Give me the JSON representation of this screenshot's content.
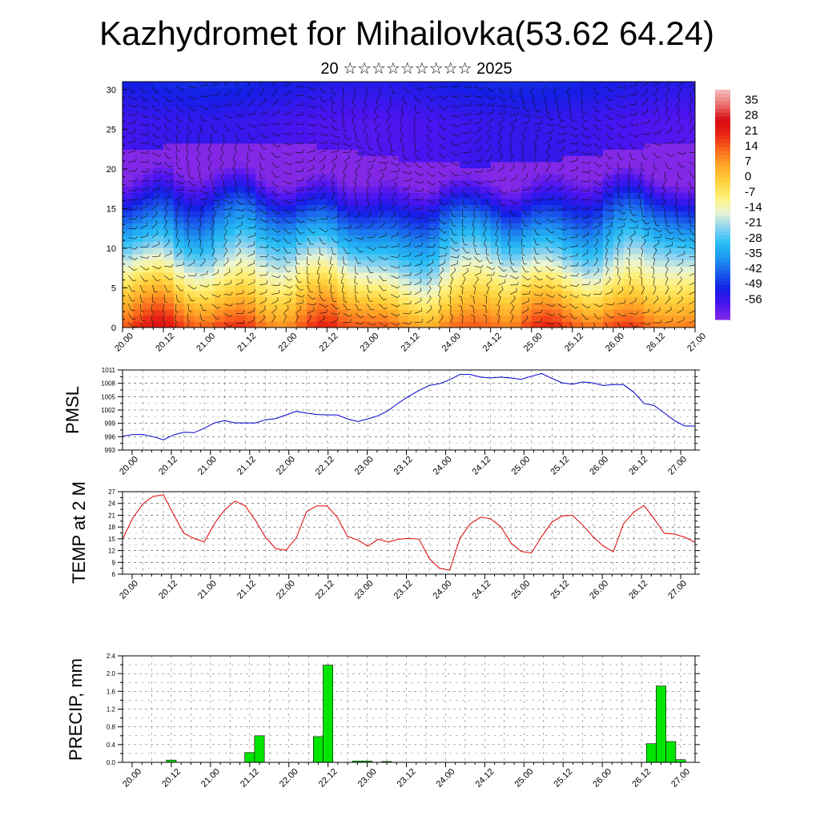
{
  "header": {
    "title": "Kazhydromet for Mihailovka(53.62 64.24)",
    "subtitle": "20 ☆☆☆☆☆☆☆☆☆ 2025"
  },
  "colors": {
    "pressure_line": "#0000cc",
    "temp_line": "#dd0000",
    "precip_bar": "#00e600"
  },
  "time_labels": [
    "20.00",
    "20.12",
    "21.00",
    "21.12",
    "22.00",
    "22.12",
    "23.00",
    "23.12",
    "24.00",
    "24.12",
    "25.00",
    "25.12",
    "26.00",
    "26.12",
    "27.00"
  ],
  "chart_data": [
    {
      "type": "heatmap",
      "ylim": [
        0,
        31
      ],
      "yticks": [
        "0",
        "5",
        "10",
        "15",
        "20",
        "25",
        "30"
      ],
      "xticks": [
        "20.00",
        "20.12",
        "21.00",
        "21.12",
        "22.00",
        "22.12",
        "23.00",
        "23.12",
        "24.00",
        "24.12",
        "25.00",
        "25.12",
        "26.00",
        "26.12",
        "27.00"
      ],
      "colorbar": {
        "labels": [
          "35",
          "28",
          "21",
          "14",
          "7",
          "0",
          "-7",
          "-14",
          "-21",
          "-28",
          "-35",
          "-42",
          "-49",
          "-56"
        ],
        "range": [
          -63,
          42
        ]
      },
      "overlay": "wind barbs",
      "surface_temp_by_hour": [
        {
          "t": 0,
          "v": 15
        },
        {
          "t": 6,
          "v": 22
        },
        {
          "t": 12,
          "v": 26
        },
        {
          "t": 18,
          "v": 16
        },
        {
          "t": 24,
          "v": 14
        },
        {
          "t": 30,
          "v": 21
        },
        {
          "t": 36,
          "v": 24
        },
        {
          "t": 42,
          "v": 15
        },
        {
          "t": 48,
          "v": 12
        },
        {
          "t": 54,
          "v": 20
        },
        {
          "t": 60,
          "v": 23
        },
        {
          "t": 66,
          "v": 15
        },
        {
          "t": 72,
          "v": 14
        },
        {
          "t": 78,
          "v": 15
        },
        {
          "t": 84,
          "v": 10
        },
        {
          "t": 90,
          "v": 7
        },
        {
          "t": 96,
          "v": 17
        },
        {
          "t": 102,
          "v": 20
        },
        {
          "t": 108,
          "v": 17
        },
        {
          "t": 114,
          "v": 11
        },
        {
          "t": 120,
          "v": 19
        },
        {
          "t": 126,
          "v": 21
        },
        {
          "t": 132,
          "v": 15
        },
        {
          "t": 138,
          "v": 12
        },
        {
          "t": 144,
          "v": 20
        },
        {
          "t": 150,
          "v": 23
        },
        {
          "t": 156,
          "v": 16
        },
        {
          "t": 162,
          "v": 14
        },
        {
          "t": 168,
          "v": 14
        }
      ]
    },
    {
      "type": "line",
      "ylabel": "PMSL",
      "ylim": [
        993,
        1011
      ],
      "yticks": [
        "993",
        "996",
        "999",
        "1002",
        "1005",
        "1008",
        "1011"
      ],
      "xticks": [
        "20.00",
        "20.12",
        "21.00",
        "21.12",
        "22.00",
        "22.12",
        "23.00",
        "23.12",
        "24.00",
        "24.12",
        "25.00",
        "25.12",
        "26.00",
        "26.12",
        "27.00"
      ],
      "series": [
        {
          "values_by_hour": [
            {
              "t": 0,
              "v": 996.1
            },
            {
              "t": 3,
              "v": 996.5
            },
            {
              "t": 6,
              "v": 996.5
            },
            {
              "t": 9,
              "v": 996.0
            },
            {
              "t": 12,
              "v": 995.3
            },
            {
              "t": 15,
              "v": 996.4
            },
            {
              "t": 18,
              "v": 997.0
            },
            {
              "t": 21,
              "v": 996.9
            },
            {
              "t": 24,
              "v": 997.9
            },
            {
              "t": 27,
              "v": 999.1
            },
            {
              "t": 30,
              "v": 999.6
            },
            {
              "t": 33,
              "v": 999.1
            },
            {
              "t": 36,
              "v": 999.1
            },
            {
              "t": 39,
              "v": 999.1
            },
            {
              "t": 42,
              "v": 999.8
            },
            {
              "t": 45,
              "v": 1000.1
            },
            {
              "t": 48,
              "v": 1000.9
            },
            {
              "t": 51,
              "v": 1001.7
            },
            {
              "t": 54,
              "v": 1001.3
            },
            {
              "t": 57,
              "v": 1001.0
            },
            {
              "t": 60,
              "v": 1000.9
            },
            {
              "t": 63,
              "v": 1000.9
            },
            {
              "t": 66,
              "v": 1000.0
            },
            {
              "t": 69,
              "v": 999.4
            },
            {
              "t": 72,
              "v": 1000.0
            },
            {
              "t": 75,
              "v": 1000.7
            },
            {
              "t": 78,
              "v": 1001.9
            },
            {
              "t": 81,
              "v": 1003.6
            },
            {
              "t": 84,
              "v": 1005.1
            },
            {
              "t": 87,
              "v": 1006.4
            },
            {
              "t": 90,
              "v": 1007.5
            },
            {
              "t": 93,
              "v": 1007.9
            },
            {
              "t": 96,
              "v": 1008.8
            },
            {
              "t": 99,
              "v": 1010.0
            },
            {
              "t": 102,
              "v": 1010.0
            },
            {
              "t": 105,
              "v": 1009.4
            },
            {
              "t": 108,
              "v": 1009.2
            },
            {
              "t": 111,
              "v": 1009.4
            },
            {
              "t": 114,
              "v": 1009.2
            },
            {
              "t": 117,
              "v": 1008.9
            },
            {
              "t": 120,
              "v": 1009.6
            },
            {
              "t": 123,
              "v": 1010.2
            },
            {
              "t": 126,
              "v": 1009.1
            },
            {
              "t": 129,
              "v": 1008.1
            },
            {
              "t": 132,
              "v": 1007.8
            },
            {
              "t": 135,
              "v": 1008.3
            },
            {
              "t": 138,
              "v": 1008.1
            },
            {
              "t": 141,
              "v": 1007.5
            },
            {
              "t": 144,
              "v": 1007.7
            },
            {
              "t": 147,
              "v": 1007.7
            },
            {
              "t": 150,
              "v": 1006.0
            },
            {
              "t": 153,
              "v": 1003.5
            },
            {
              "t": 156,
              "v": 1003.0
            },
            {
              "t": 159,
              "v": 1001.3
            },
            {
              "t": 162,
              "v": 999.6
            },
            {
              "t": 165,
              "v": 998.4
            },
            {
              "t": 168,
              "v": 998.4
            }
          ]
        }
      ]
    },
    {
      "type": "line",
      "ylabel": "TEMP at 2 M",
      "ylim": [
        6,
        27
      ],
      "yticks": [
        "6",
        "9",
        "12",
        "15",
        "18",
        "21",
        "24",
        "27"
      ],
      "xticks": [
        "20.00",
        "20.12",
        "21.00",
        "21.12",
        "22.00",
        "22.12",
        "23.00",
        "23.12",
        "24.00",
        "24.12",
        "25.00",
        "25.12",
        "26.00",
        "26.12",
        "27.00"
      ],
      "series": [
        {
          "values_by_hour": [
            {
              "t": 0,
              "v": 14.9
            },
            {
              "t": 3,
              "v": 20.3
            },
            {
              "t": 6,
              "v": 23.9
            },
            {
              "t": 9,
              "v": 25.8
            },
            {
              "t": 12,
              "v": 26.2
            },
            {
              "t": 15,
              "v": 21.2
            },
            {
              "t": 18,
              "v": 16.4
            },
            {
              "t": 21,
              "v": 15.1
            },
            {
              "t": 24,
              "v": 14.2
            },
            {
              "t": 27,
              "v": 18.9
            },
            {
              "t": 30,
              "v": 22.4
            },
            {
              "t": 33,
              "v": 24.6
            },
            {
              "t": 36,
              "v": 23.4
            },
            {
              "t": 39,
              "v": 19.7
            },
            {
              "t": 42,
              "v": 15.3
            },
            {
              "t": 45,
              "v": 12.5
            },
            {
              "t": 48,
              "v": 12.1
            },
            {
              "t": 51,
              "v": 15.3
            },
            {
              "t": 54,
              "v": 21.9
            },
            {
              "t": 57,
              "v": 23.4
            },
            {
              "t": 60,
              "v": 23.4
            },
            {
              "t": 63,
              "v": 20.5
            },
            {
              "t": 66,
              "v": 15.6
            },
            {
              "t": 69,
              "v": 14.7
            },
            {
              "t": 72,
              "v": 13.1
            },
            {
              "t": 75,
              "v": 14.9
            },
            {
              "t": 78,
              "v": 14.2
            },
            {
              "t": 81,
              "v": 14.9
            },
            {
              "t": 84,
              "v": 15.1
            },
            {
              "t": 87,
              "v": 14.9
            },
            {
              "t": 90,
              "v": 10.0
            },
            {
              "t": 93,
              "v": 7.5
            },
            {
              "t": 96,
              "v": 7.0
            },
            {
              "t": 99,
              "v": 15.1
            },
            {
              "t": 102,
              "v": 18.8
            },
            {
              "t": 105,
              "v": 20.5
            },
            {
              "t": 108,
              "v": 20.1
            },
            {
              "t": 111,
              "v": 18.1
            },
            {
              "t": 114,
              "v": 13.9
            },
            {
              "t": 117,
              "v": 11.8
            },
            {
              "t": 120,
              "v": 11.4
            },
            {
              "t": 123,
              "v": 15.6
            },
            {
              "t": 126,
              "v": 19.3
            },
            {
              "t": 129,
              "v": 20.8
            },
            {
              "t": 132,
              "v": 21.0
            },
            {
              "t": 135,
              "v": 18.5
            },
            {
              "t": 138,
              "v": 15.6
            },
            {
              "t": 141,
              "v": 13.2
            },
            {
              "t": 144,
              "v": 11.7
            },
            {
              "t": 147,
              "v": 18.8
            },
            {
              "t": 150,
              "v": 21.8
            },
            {
              "t": 153,
              "v": 23.5
            },
            {
              "t": 156,
              "v": 20.1
            },
            {
              "t": 159,
              "v": 16.4
            },
            {
              "t": 162,
              "v": 16.2
            },
            {
              "t": 165,
              "v": 15.4
            },
            {
              "t": 168,
              "v": 14.1
            }
          ]
        }
      ]
    },
    {
      "type": "bar",
      "ylabel": "PRECIP, mm",
      "ylim": [
        0,
        2.4
      ],
      "yticks": [
        "0.0",
        "0.4",
        "0.8",
        "1.2",
        "1.6",
        "2.0",
        "2.4"
      ],
      "xticks": [
        "20.00",
        "20.12",
        "21.00",
        "21.12",
        "22.00",
        "22.12",
        "23.00",
        "23.12",
        "24.00",
        "24.12",
        "25.00",
        "25.12",
        "26.00",
        "26.12",
        "27.00"
      ],
      "bar_hours": 3,
      "bars": [
        {
          "t": 12,
          "v": 0.05
        },
        {
          "t": 36,
          "v": 0.22
        },
        {
          "t": 39,
          "v": 0.6
        },
        {
          "t": 57,
          "v": 0.58
        },
        {
          "t": 60,
          "v": 2.19
        },
        {
          "t": 69,
          "v": 0.03
        },
        {
          "t": 72,
          "v": 0.03
        },
        {
          "t": 78,
          "v": 0.02
        },
        {
          "t": 159,
          "v": 0.42
        },
        {
          "t": 162,
          "v": 1.72
        },
        {
          "t": 165,
          "v": 0.47
        },
        {
          "t": 168,
          "v": 0.06
        }
      ]
    }
  ]
}
